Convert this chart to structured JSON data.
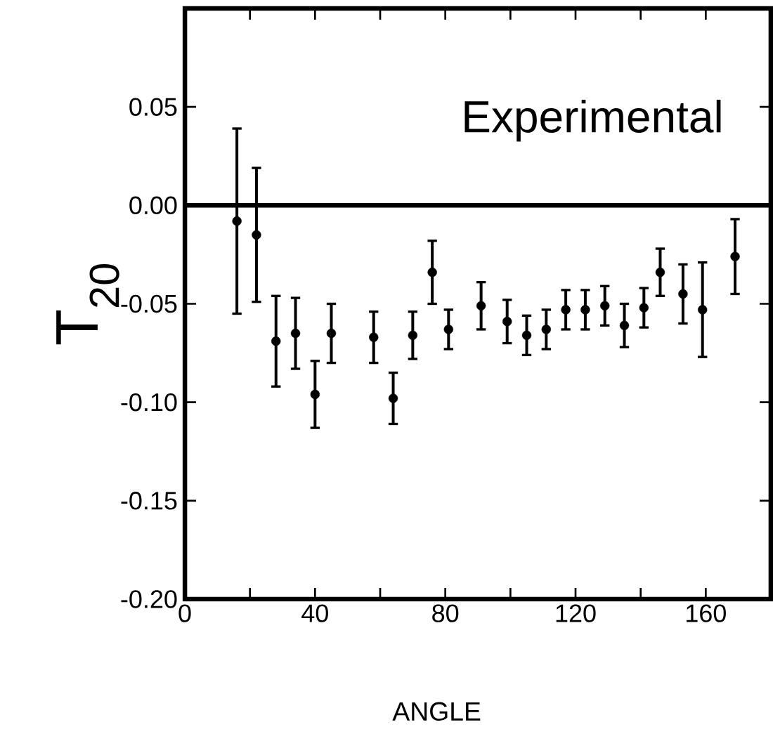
{
  "chart_data": {
    "type": "scatter",
    "xlabel": "ANGLE",
    "ylabel": "T$_{20}$",
    "annotations": [
      "Experimental"
    ],
    "x": [
      16,
      22,
      28,
      34,
      40,
      45,
      58,
      64,
      70,
      76,
      81,
      91,
      99,
      105,
      111,
      117,
      123,
      129,
      135,
      141,
      146,
      153,
      159,
      169
    ],
    "series": [
      {
        "color": "#000000",
        "values": [
          -0.008,
          -0.015,
          -0.069,
          -0.065,
          -0.096,
          -0.065,
          -0.067,
          -0.098,
          -0.066,
          -0.034,
          -0.063,
          -0.051,
          -0.059,
          -0.066,
          -0.063,
          -0.053,
          -0.053,
          -0.051,
          -0.061,
          -0.052,
          -0.034,
          -0.045,
          -0.053,
          -0.026
        ],
        "errors": [
          0.047,
          0.034,
          0.023,
          0.018,
          0.017,
          0.015,
          0.013,
          0.013,
          0.012,
          0.016,
          0.01,
          0.012,
          0.011,
          0.01,
          0.01,
          0.01,
          0.01,
          0.01,
          0.011,
          0.01,
          0.012,
          0.015,
          0.024,
          0.019
        ]
      }
    ],
    "xlim": [
      0,
      180
    ],
    "ylim": [
      -0.2,
      0.1
    ],
    "xticks": [
      0,
      {
        "value": 20,
        "label": null
      },
      40,
      {
        "value": 60,
        "label": null
      },
      80,
      {
        "value": 100,
        "label": null
      },
      120,
      {
        "value": 140,
        "label": null
      },
      160
    ],
    "yticks": [
      {
        "value": -0.2,
        "label": "-0.20"
      },
      {
        "value": -0.15,
        "label": "-0.15"
      },
      {
        "value": -0.1,
        "label": "-0.10"
      },
      {
        "value": -0.05,
        "label": "-0.05"
      },
      {
        "value": 0,
        "label": "0.00"
      },
      {
        "value": 0.05,
        "label": "0.05"
      }
    ],
    "ref_lines": [
      {
        "axis": "y",
        "value": 0
      }
    ]
  }
}
